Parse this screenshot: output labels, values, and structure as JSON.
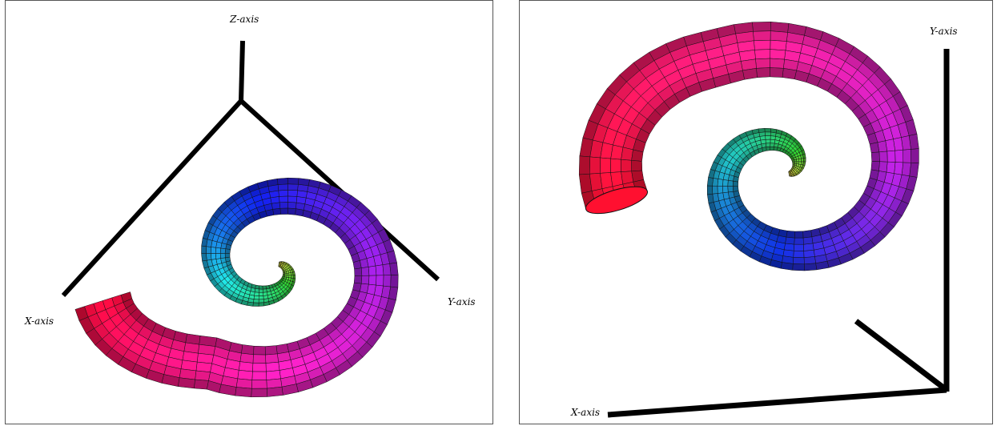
{
  "panels": [
    {
      "id": "left",
      "axis_labels": {
        "z": "Z-axis",
        "x": "X-axis",
        "y": "Y-axis"
      },
      "colors": {
        "tail": "#ff0a3a",
        "mid": "#ff20c0",
        "outer": "#9a20e8",
        "blue": "#1020e8",
        "cyan": "#20e0e0",
        "green": "#30d030",
        "tip": "#f0f040"
      }
    },
    {
      "id": "right",
      "axis_labels": {
        "y": "Y-axis",
        "x": "X-axis"
      },
      "colors": {
        "tail": "#ff1030",
        "mid": "#ff2090",
        "outer": "#c020e0",
        "blue": "#1030e0",
        "cyan": "#20c0c0",
        "green": "#30d030",
        "tip": "#f0e040"
      }
    }
  ]
}
